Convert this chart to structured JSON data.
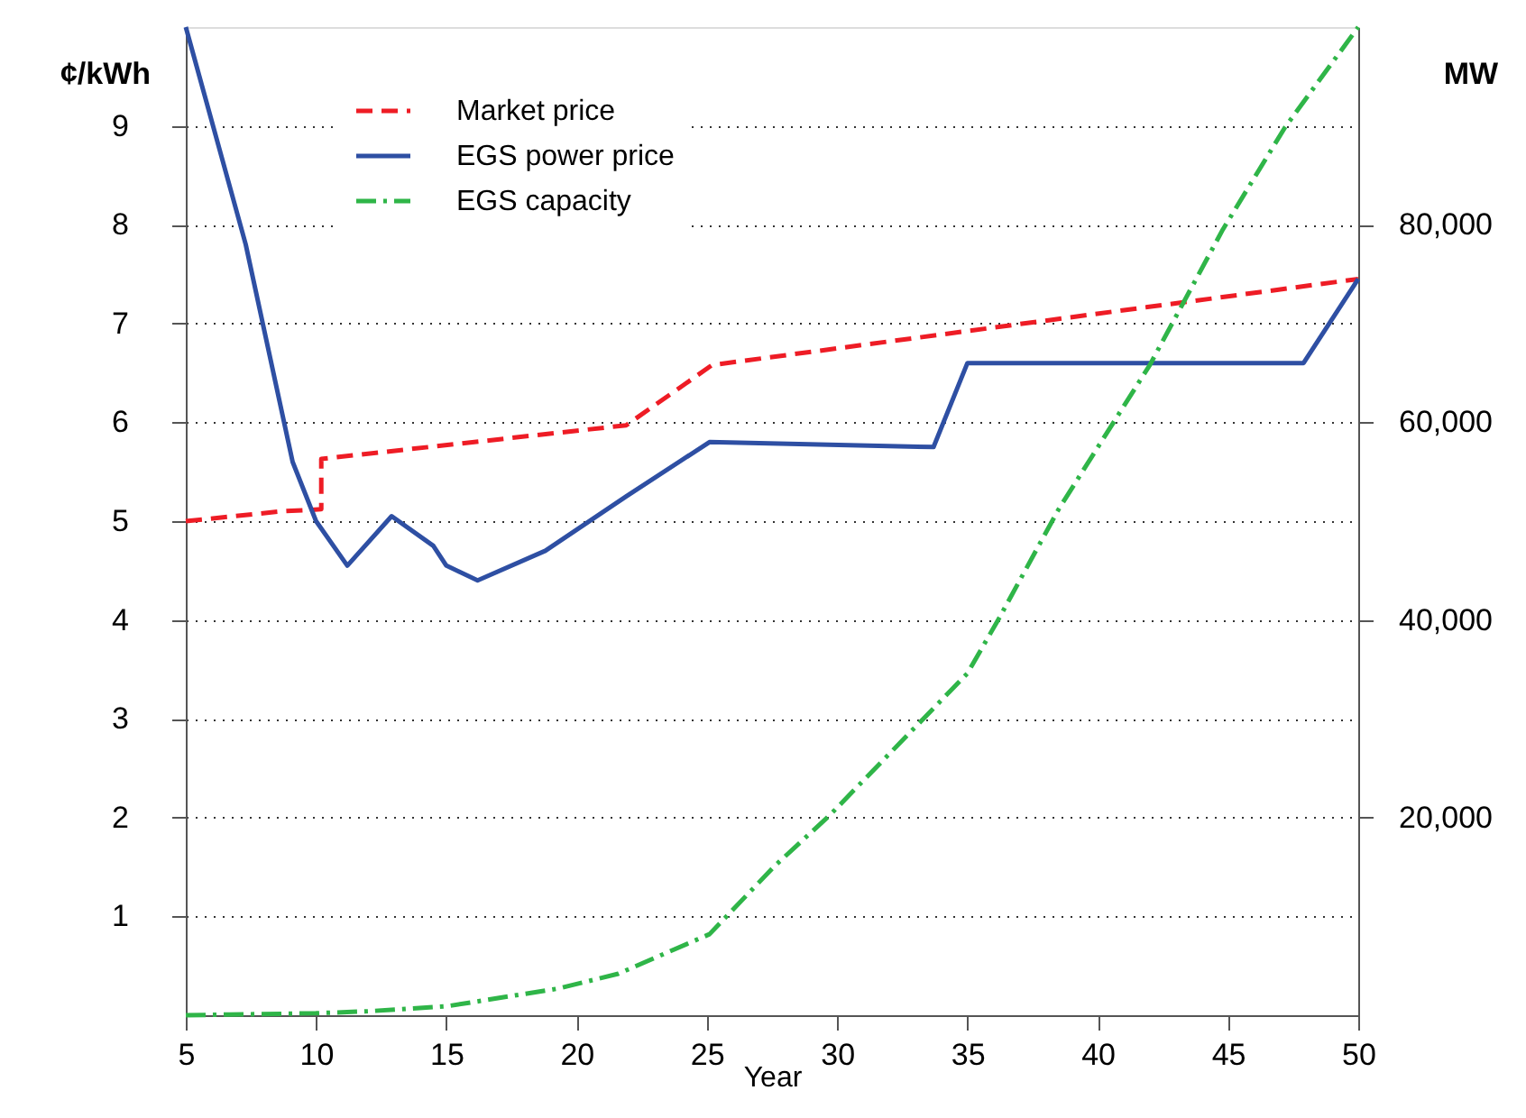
{
  "chart_data": {
    "type": "line",
    "xlabel": "Year",
    "ylabel": "¢/kWh",
    "y2label": "MW",
    "xlim": [
      5,
      50
    ],
    "xticks": [
      5,
      10,
      15,
      20,
      25,
      30,
      35,
      40,
      45,
      50
    ],
    "ylim": [
      0,
      10
    ],
    "yticks": [
      1,
      2,
      3,
      4,
      5,
      6,
      7,
      8,
      9
    ],
    "y2lim": [
      0,
      100000
    ],
    "y2ticks": [
      {
        "value": 20000,
        "label": "20,000"
      },
      {
        "value": 40000,
        "label": "40,000"
      },
      {
        "value": 60000,
        "label": "60,000"
      },
      {
        "value": 80000,
        "label": "80,000"
      }
    ],
    "grid": "y",
    "legend": "top left",
    "marker": "none",
    "series": [
      {
        "name": "Market price",
        "color": "#ee1c25",
        "line_style": "dashed",
        "x": [
          5,
          8.7,
          10.2,
          10.2,
          21.9,
          25.2,
          50
        ],
        "values": [
          5.0,
          5.1,
          5.12,
          5.63,
          5.97,
          6.58,
          7.45
        ]
      },
      {
        "name": "EGS power price",
        "color": "#2e4fa3",
        "line_style": "solid",
        "x": [
          5,
          7.3,
          9.1,
          10,
          11.2,
          12.9,
          14.5,
          15,
          16.2,
          18.8,
          21.9,
          25.1,
          33.7,
          35,
          47.9,
          50
        ],
        "values": [
          10.0,
          7.8,
          5.6,
          5.0,
          4.55,
          5.05,
          4.75,
          4.55,
          4.4,
          4.7,
          5.25,
          5.8,
          5.75,
          6.6,
          6.6,
          7.45
        ]
      },
      {
        "name": "EGS capacity",
        "color": "#2fb548",
        "line_style": "dashdot",
        "axis": "y2",
        "x": [
          5,
          10,
          12,
          15,
          19.3,
          21.6,
          25.1,
          27.6,
          29.7,
          33.2,
          35,
          36.2,
          38.5,
          42,
          44.8,
          47.2,
          50
        ],
        "values": [
          0,
          200,
          400,
          900,
          2700,
          4200,
          8200,
          15100,
          20200,
          29700,
          34600,
          40100,
          51200,
          65800,
          79500,
          89900,
          100000
        ]
      }
    ]
  }
}
